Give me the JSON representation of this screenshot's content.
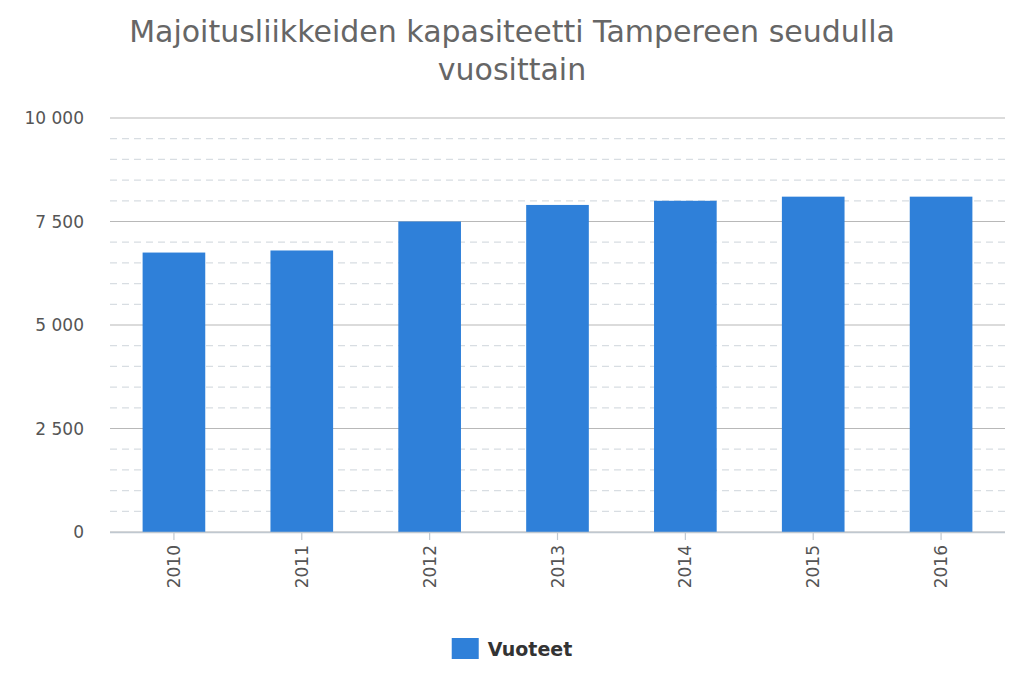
{
  "chart_data": {
    "type": "bar",
    "title": "Majoitusliikkeiden kapasiteetti Tampereen seudulla vuosittain",
    "categories": [
      "2010",
      "2011",
      "2012",
      "2013",
      "2014",
      "2015",
      "2016"
    ],
    "series": [
      {
        "name": "Vuoteet",
        "color": "#2f80d9",
        "values": [
          6750,
          6800,
          7500,
          7900,
          8000,
          8100,
          8100
        ]
      }
    ],
    "ylim": [
      0,
      10000
    ],
    "yticks": [
      0,
      {
        "value": 2500,
        "label": "2 500"
      },
      {
        "value": 5000,
        "label": "5 000"
      },
      {
        "value": 7500,
        "label": "7 500"
      },
      {
        "value": 10000,
        "label": "10 000"
      }
    ],
    "grid": true,
    "legend": "bottom"
  }
}
